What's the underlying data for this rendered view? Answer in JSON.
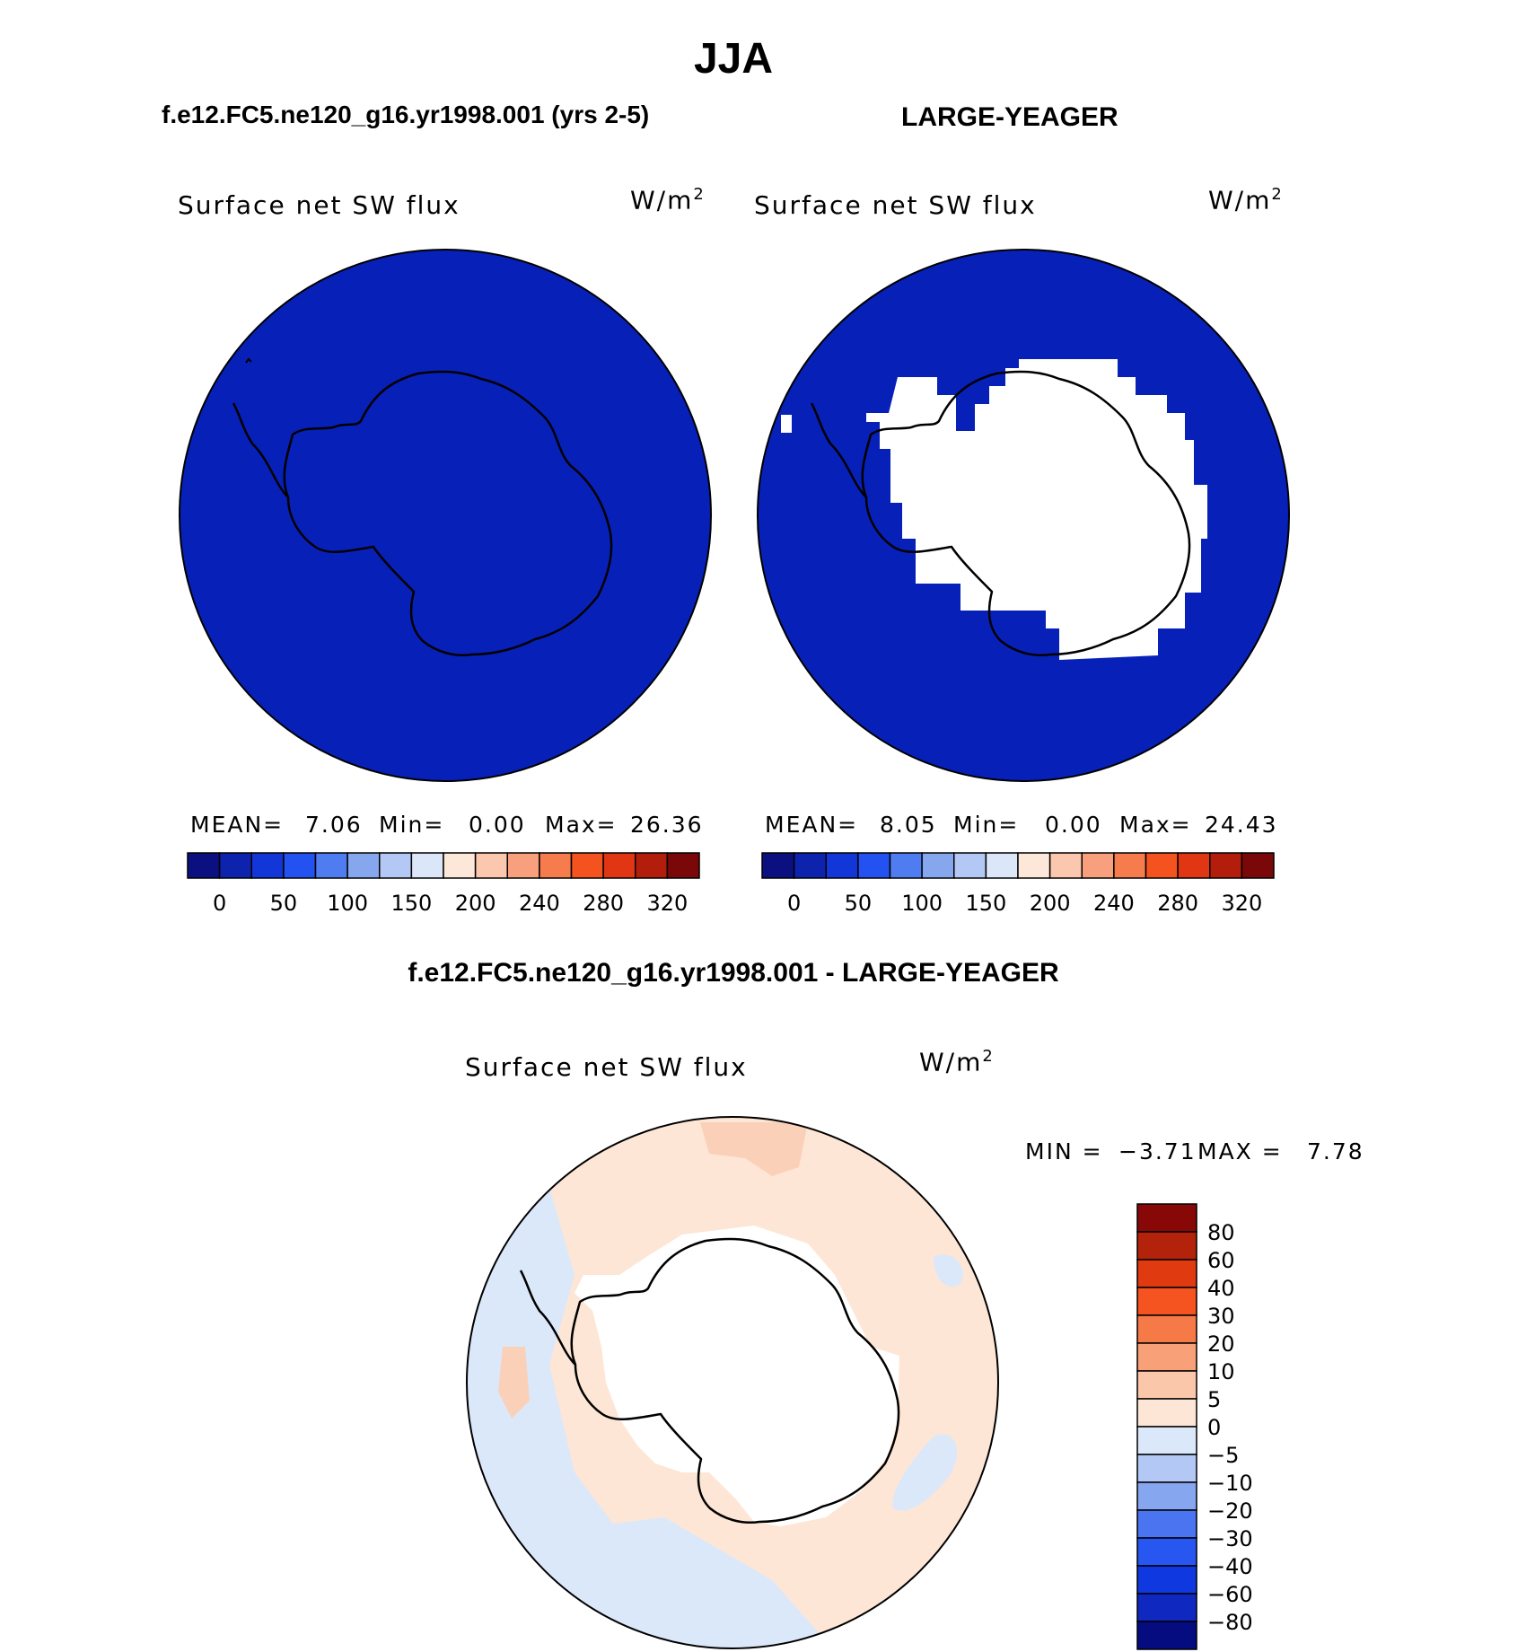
{
  "figure": {
    "title": "JJA"
  },
  "panels": {
    "model": {
      "heading": "f.e12.FC5.ne120_g16.yr1998.001 (yrs 2-5)",
      "variable": "Surface net SW flux",
      "units_base": "W/m",
      "units_exp": "2",
      "stats": {
        "mean_label": "MEAN=",
        "mean": "7.06",
        "min_label": "Min=",
        "min": "0.00",
        "max_label": "Max=",
        "max": "26.36"
      }
    },
    "obs": {
      "heading": "LARGE-YEAGER",
      "variable": "Surface net SW flux",
      "units_base": "W/m",
      "units_exp": "2",
      "stats": {
        "mean_label": "MEAN=",
        "mean": "8.05",
        "min_label": "Min=",
        "min": "0.00",
        "max_label": "Max=",
        "max": "24.43"
      }
    },
    "diff": {
      "heading": "f.e12.FC5.ne120_g16.yr1998.001 - LARGE-YEAGER",
      "variable": "Surface net SW flux",
      "units_base": "W/m",
      "units_exp": "2",
      "stats": {
        "min_label": "MIN =",
        "min": "−3.71",
        "max_label": "MAX =",
        "max": "7.78"
      }
    }
  },
  "colorbar_abs": {
    "colors": [
      "#0a1080",
      "#0e23ad",
      "#1336d8",
      "#2452f0",
      "#4f7cf0",
      "#86a6ee",
      "#b3c8f4",
      "#dbe6f8",
      "#fde7d8",
      "#fbc7ae",
      "#f8a07e",
      "#f67c4e",
      "#f4531f",
      "#e03614",
      "#b31d0c",
      "#7a0808"
    ],
    "tick_labels": [
      "0",
      "50",
      "100",
      "150",
      "200",
      "240",
      "280",
      "320"
    ]
  },
  "colorbar_diff": {
    "colors": [
      "#050c80",
      "#0e28c0",
      "#1038e0",
      "#2856f0",
      "#4a74f0",
      "#86a6f0",
      "#b3c8f5",
      "#dbe8fa",
      "#fde6d5",
      "#fbc7aa",
      "#f8a077",
      "#f67a48",
      "#f5531f",
      "#e03a10",
      "#b3220a",
      "#880808"
    ],
    "tick_labels": [
      "−80",
      "−60",
      "−40",
      "−30",
      "−20",
      "−10",
      "−5",
      "0",
      "5",
      "10",
      "20",
      "30",
      "40",
      "60",
      "80"
    ]
  },
  "map_colors": {
    "ocean_model": "#0721b8",
    "ocean_obs": "#0721b8",
    "land_blank": "#ffffff",
    "diff_positive": "#fde6d5",
    "diff_positive_strong": "#fbd0b8",
    "diff_negative": "#dbe8fa",
    "coast": "#000000"
  }
}
